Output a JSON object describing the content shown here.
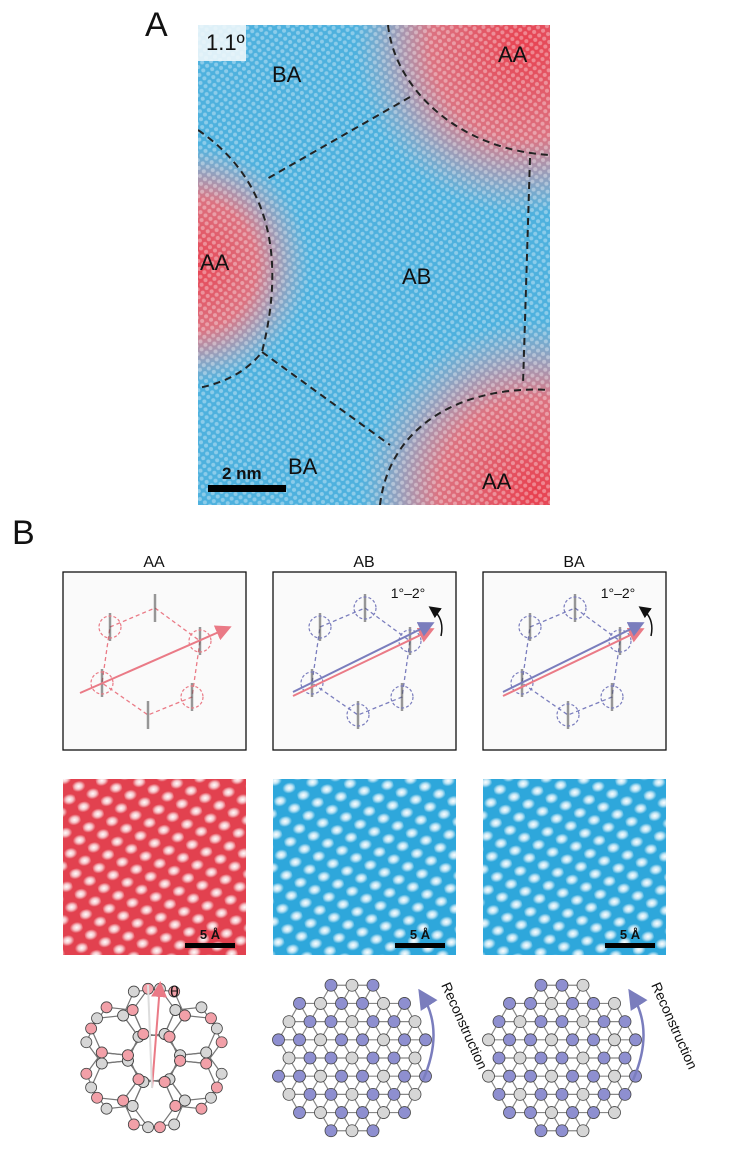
{
  "panel_a": {
    "label": "A",
    "twist": "1.1º",
    "regions": [
      "BA",
      "AA",
      "AA",
      "AB",
      "BA",
      "AA"
    ],
    "scale_bar": "2 nm"
  },
  "panel_b": {
    "label": "B",
    "columns": [
      {
        "title": "AA",
        "scale_bar": "5 Å",
        "angle_symbol": "θ"
      },
      {
        "title": "AB",
        "rotation": "1°–2°",
        "scale_bar": "5 Å",
        "annotation": "Reconstruction"
      },
      {
        "title": "BA",
        "rotation": "1°–2°",
        "scale_bar": "5 Å",
        "annotation": "Reconstruction"
      }
    ]
  }
}
